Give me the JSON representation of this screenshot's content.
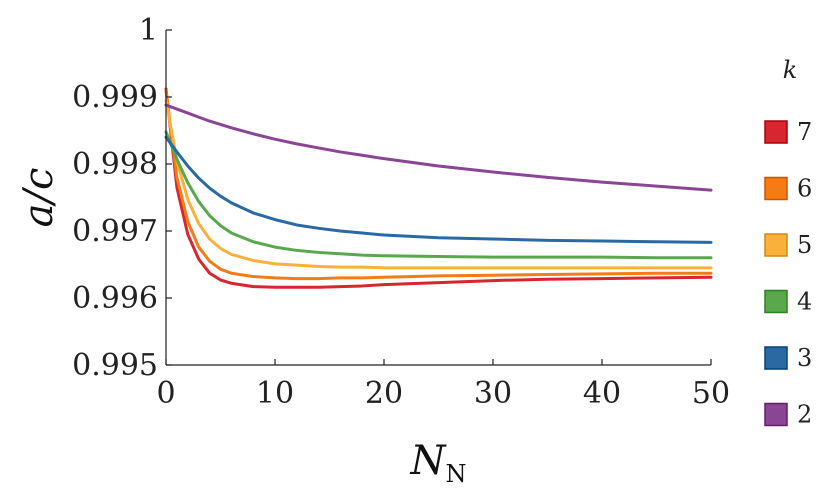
{
  "chart_data": {
    "type": "line",
    "title": "",
    "xlabel": "N",
    "xlabel_subscript": "N",
    "ylabel": "a/c",
    "xlim": [
      0,
      50
    ],
    "ylim": [
      0.995,
      1.0
    ],
    "x_ticks": [
      0,
      10,
      20,
      30,
      40,
      50
    ],
    "y_ticks": [
      0.995,
      0.996,
      0.997,
      0.998,
      0.999,
      1.0
    ],
    "x_tick_labels": [
      "0",
      "10",
      "20",
      "30",
      "40",
      "50"
    ],
    "y_tick_labels": [
      "0.995",
      "0.996",
      "0.997",
      "0.998",
      "0.999",
      "1"
    ],
    "grid": false,
    "legend": {
      "title": "k",
      "placement": "right"
    },
    "x": [
      0,
      1,
      2,
      3,
      4,
      5,
      6,
      8,
      10,
      12,
      14,
      16,
      18,
      20,
      25,
      30,
      35,
      40,
      45,
      50
    ],
    "series": [
      {
        "name": "7",
        "color": "#d7262f",
        "values": [
          0.99912,
          0.99765,
          0.99695,
          0.99658,
          0.99637,
          0.99627,
          0.99622,
          0.99617,
          0.99616,
          0.99616,
          0.99616,
          0.99617,
          0.99618,
          0.9962,
          0.99623,
          0.99626,
          0.99628,
          0.99629,
          0.9963,
          0.99631
        ]
      },
      {
        "name": "6",
        "color": "#f57c14",
        "values": [
          0.9991,
          0.9978,
          0.99714,
          0.99676,
          0.99655,
          0.99643,
          0.99637,
          0.99632,
          0.9963,
          0.99629,
          0.99629,
          0.9963,
          0.9963,
          0.99631,
          0.99633,
          0.99634,
          0.99635,
          0.99636,
          0.99637,
          0.99637
        ]
      },
      {
        "name": "5",
        "color": "#f9b13b",
        "values": [
          0.99895,
          0.99805,
          0.99747,
          0.99711,
          0.99688,
          0.99674,
          0.99665,
          0.99656,
          0.99651,
          0.99649,
          0.99647,
          0.99646,
          0.99646,
          0.99645,
          0.99645,
          0.99645,
          0.99645,
          0.99645,
          0.99645,
          0.99645
        ]
      },
      {
        "name": "4",
        "color": "#59a84b",
        "values": [
          0.99848,
          0.99807,
          0.99772,
          0.99744,
          0.99723,
          0.99708,
          0.99697,
          0.99684,
          0.99676,
          0.99671,
          0.99668,
          0.99666,
          0.99664,
          0.99663,
          0.99662,
          0.99661,
          0.99661,
          0.99661,
          0.9966,
          0.9966
        ]
      },
      {
        "name": "3",
        "color": "#2a69a2",
        "values": [
          0.9984,
          0.99818,
          0.99797,
          0.99779,
          0.99764,
          0.99752,
          0.99742,
          0.99727,
          0.99717,
          0.99709,
          0.99704,
          0.997,
          0.99697,
          0.99694,
          0.9969,
          0.99688,
          0.99686,
          0.99685,
          0.99684,
          0.99683
        ]
      },
      {
        "name": "2",
        "color": "#8b4595",
        "values": [
          0.99888,
          0.99882,
          0.99876,
          0.9987,
          0.99864,
          0.99859,
          0.99854,
          0.99845,
          0.99837,
          0.9983,
          0.99824,
          0.99818,
          0.99813,
          0.99808,
          0.99797,
          0.99788,
          0.9978,
          0.99773,
          0.99767,
          0.99761
        ]
      }
    ]
  }
}
